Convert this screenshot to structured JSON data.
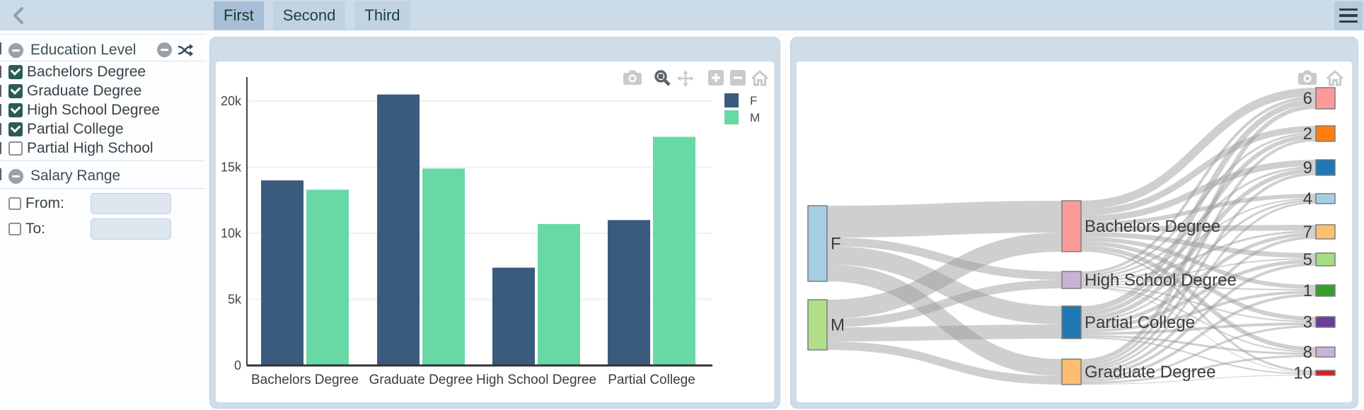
{
  "topbar": {
    "back_icon": "chevron-left",
    "tabs": [
      {
        "label": "First",
        "active": true
      },
      {
        "label": "Second",
        "active": false
      },
      {
        "label": "Third",
        "active": false
      }
    ],
    "menu_icon": "hamburger-menu"
  },
  "sidebar": {
    "sections": [
      {
        "title": "Education Level",
        "header_icons": [
          "collapse-minus",
          "shuffle"
        ],
        "items": [
          {
            "label": "Bachelors Degree",
            "checked": true
          },
          {
            "label": "Graduate Degree",
            "checked": true
          },
          {
            "label": "High School Degree",
            "checked": true
          },
          {
            "label": "Partial College",
            "checked": true
          },
          {
            "label": "Partial High School",
            "checked": false
          }
        ]
      },
      {
        "title": "Salary Range",
        "header_icons": [
          "collapse-minus"
        ],
        "fields": [
          {
            "label": "From:",
            "checked": false,
            "value": "",
            "placeholder": ""
          },
          {
            "label": "To:",
            "checked": false,
            "value": "",
            "placeholder": ""
          }
        ]
      }
    ]
  },
  "bar_panel": {
    "modebar_icons": [
      "camera",
      "zoom",
      "pan",
      "zoom-in",
      "zoom-out",
      "home"
    ],
    "active_modebar_icon": "zoom"
  },
  "sankey_panel": {
    "modebar_icons": [
      "camera",
      "home"
    ]
  },
  "chart_data": [
    {
      "type": "bar",
      "title": "",
      "xlabel": "",
      "ylabel": "",
      "categories": [
        "Bachelors Degree",
        "Graduate Degree",
        "High School Degree",
        "Partial College"
      ],
      "series": [
        {
          "name": "F",
          "color": "#3B5B7E",
          "values": [
            14000,
            20500,
            7400,
            11000
          ]
        },
        {
          "name": "M",
          "color": "#68D9A4",
          "values": [
            13300,
            14900,
            10700,
            17300
          ]
        }
      ],
      "ylim": [
        0,
        21500
      ],
      "yticks": {
        "values": [
          0,
          5000,
          10000,
          15000,
          20000
        ],
        "labels": [
          "0",
          "5k",
          "10k",
          "15k",
          "20k"
        ]
      },
      "grid": true,
      "legend_position": "top-right"
    },
    {
      "type": "sankey",
      "title": "",
      "nodes": [
        {
          "id": "F",
          "label": "F",
          "color": "#A6CEE3",
          "column": 0
        },
        {
          "id": "M",
          "label": "M",
          "color": "#B2DF8A",
          "column": 0
        },
        {
          "id": "BD",
          "label": "Bachelors Degree",
          "color": "#FB9A99",
          "column": 1
        },
        {
          "id": "HS",
          "label": "High School Degree",
          "color": "#CAB2D6",
          "column": 1
        },
        {
          "id": "PC",
          "label": "Partial College",
          "color": "#1F78B4",
          "column": 1
        },
        {
          "id": "GD",
          "label": "Graduate Degree",
          "color": "#FDBF6F",
          "column": 1
        },
        {
          "id": "6",
          "label": "6",
          "color": "#FB9A99",
          "column": 2
        },
        {
          "id": "2",
          "label": "2",
          "color": "#FF7F0E",
          "column": 2
        },
        {
          "id": "9",
          "label": "9",
          "color": "#1F77B4",
          "column": 2
        },
        {
          "id": "4",
          "label": "4",
          "color": "#A6CEE3",
          "column": 2
        },
        {
          "id": "7",
          "label": "7",
          "color": "#FDBF6F",
          "column": 2
        },
        {
          "id": "5",
          "label": "5",
          "color": "#A4DE82",
          "column": 2
        },
        {
          "id": "1",
          "label": "1",
          "color": "#33A02C",
          "column": 2
        },
        {
          "id": "3",
          "label": "3",
          "color": "#6A3D9A",
          "column": 2
        },
        {
          "id": "8",
          "label": "8",
          "color": "#CAB2D6",
          "column": 2
        },
        {
          "id": "10",
          "label": "10",
          "color": "#E31A1C",
          "column": 2
        }
      ],
      "links": [
        {
          "source": "F",
          "target": "BD",
          "value": 45
        },
        {
          "source": "F",
          "target": "HS",
          "value": 12
        },
        {
          "source": "F",
          "target": "PC",
          "value": 26
        },
        {
          "source": "F",
          "target": "GD",
          "value": 24
        },
        {
          "source": "M",
          "target": "BD",
          "value": 27
        },
        {
          "source": "M",
          "target": "HS",
          "value": 12
        },
        {
          "source": "M",
          "target": "PC",
          "value": 20
        },
        {
          "source": "M",
          "target": "GD",
          "value": 12
        },
        {
          "source": "BD",
          "target": "6",
          "value": 12
        },
        {
          "source": "BD",
          "target": "2",
          "value": 9
        },
        {
          "source": "BD",
          "target": "9",
          "value": 9
        },
        {
          "source": "BD",
          "target": "4",
          "value": 6
        },
        {
          "source": "BD",
          "target": "7",
          "value": 8
        },
        {
          "source": "BD",
          "target": "5",
          "value": 7
        },
        {
          "source": "BD",
          "target": "1",
          "value": 6
        },
        {
          "source": "BD",
          "target": "3",
          "value": 6
        },
        {
          "source": "BD",
          "target": "8",
          "value": 6
        },
        {
          "source": "BD",
          "target": "10",
          "value": 3
        },
        {
          "source": "HS",
          "target": "6",
          "value": 4
        },
        {
          "source": "HS",
          "target": "2",
          "value": 3
        },
        {
          "source": "HS",
          "target": "9",
          "value": 3
        },
        {
          "source": "HS",
          "target": "4",
          "value": 2
        },
        {
          "source": "HS",
          "target": "7",
          "value": 3
        },
        {
          "source": "HS",
          "target": "5",
          "value": 2
        },
        {
          "source": "HS",
          "target": "1",
          "value": 2
        },
        {
          "source": "HS",
          "target": "3",
          "value": 2
        },
        {
          "source": "HS",
          "target": "8",
          "value": 2
        },
        {
          "source": "HS",
          "target": "10",
          "value": 1
        },
        {
          "source": "PC",
          "target": "6",
          "value": 8
        },
        {
          "source": "PC",
          "target": "2",
          "value": 6
        },
        {
          "source": "PC",
          "target": "9",
          "value": 6
        },
        {
          "source": "PC",
          "target": "4",
          "value": 3
        },
        {
          "source": "PC",
          "target": "7",
          "value": 5
        },
        {
          "source": "PC",
          "target": "5",
          "value": 5
        },
        {
          "source": "PC",
          "target": "1",
          "value": 4
        },
        {
          "source": "PC",
          "target": "3",
          "value": 4
        },
        {
          "source": "PC",
          "target": "8",
          "value": 3
        },
        {
          "source": "PC",
          "target": "10",
          "value": 2
        },
        {
          "source": "GD",
          "target": "6",
          "value": 6
        },
        {
          "source": "GD",
          "target": "2",
          "value": 4
        },
        {
          "source": "GD",
          "target": "9",
          "value": 4
        },
        {
          "source": "GD",
          "target": "4",
          "value": 3
        },
        {
          "source": "GD",
          "target": "7",
          "value": 4
        },
        {
          "source": "GD",
          "target": "5",
          "value": 4
        },
        {
          "source": "GD",
          "target": "1",
          "value": 4
        },
        {
          "source": "GD",
          "target": "3",
          "value": 3
        },
        {
          "source": "GD",
          "target": "8",
          "value": 3
        },
        {
          "source": "GD",
          "target": "10",
          "value": 1
        }
      ]
    }
  ]
}
